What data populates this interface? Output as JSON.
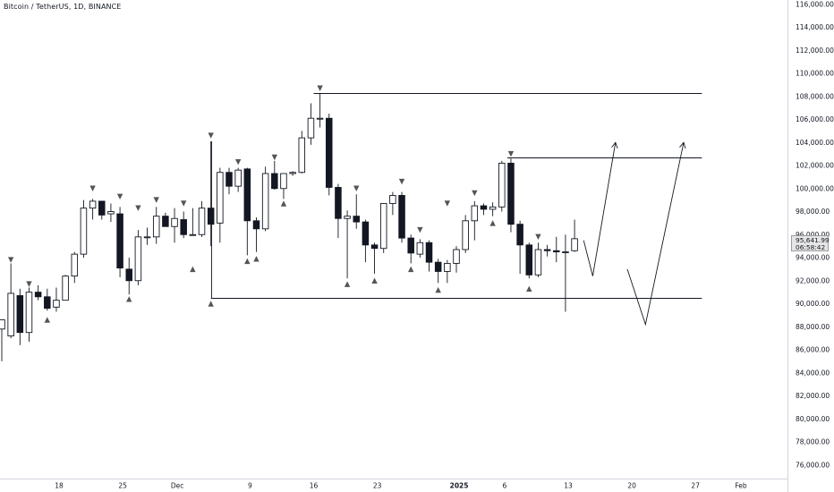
{
  "header": {
    "symbol_title": "Bitcoin / TetherUS, 1D, BINANCE"
  },
  "price_badge": {
    "price": "95,641.99",
    "countdown": "06:58:42"
  },
  "colors": {
    "up_candle_fill": "#ffffff",
    "down_candle_fill": "#131722",
    "candle_outline": "#131722",
    "drawing_lines": "#131722",
    "marker": "#555555",
    "axis_border": "#d1d4dc"
  },
  "chart_data": {
    "type": "candlestick",
    "yaxis": {
      "range": [
        74500,
        116600
      ],
      "tick_values": [
        76000,
        78000,
        80000,
        82000,
        84000,
        86000,
        88000,
        90000,
        92000,
        94000,
        96000,
        98000,
        100000,
        102000,
        104000,
        106000,
        108000,
        110000,
        112000,
        114000,
        116000
      ],
      "tick_labels": [
        "76,000.00",
        "78,000.00",
        "80,000.00",
        "82,000.00",
        "84,000.00",
        "86,000.00",
        "88,000.00",
        "90,000.00",
        "92,000.00",
        "94,000.00",
        "96,000.00",
        "98,000.00",
        "100,000.00",
        "102,000.00",
        "104,000.00",
        "106,000.00",
        "108,000.00",
        "110,000.00",
        "112,000.00",
        "114,000.00",
        "116,000.00"
      ]
    },
    "xaxis": {
      "labels": [
        {
          "text": "18",
          "bar": 6.3,
          "bold": false
        },
        {
          "text": "25",
          "bar": 13.3,
          "bold": false
        },
        {
          "text": "Dec",
          "bar": 19.3,
          "bold": false
        },
        {
          "text": "9",
          "bar": 27.3,
          "bold": false
        },
        {
          "text": "16",
          "bar": 34.3,
          "bold": false
        },
        {
          "text": "23",
          "bar": 41.3,
          "bold": false
        },
        {
          "text": "2025",
          "bar": 50.3,
          "bold": true
        },
        {
          "text": "6",
          "bar": 55.3,
          "bold": false
        },
        {
          "text": "13",
          "bar": 62.3,
          "bold": false
        },
        {
          "text": "20",
          "bar": 69.3,
          "bold": false
        },
        {
          "text": "27",
          "bar": 76.3,
          "bold": false
        },
        {
          "text": "Feb",
          "bar": 81.3,
          "bold": false
        }
      ]
    },
    "candles": [
      {
        "o": 87800,
        "h": 88600,
        "l": 85000,
        "c": 88600
      },
      {
        "o": 87200,
        "h": 93500,
        "l": 87000,
        "c": 90900
      },
      {
        "o": 90700,
        "h": 91300,
        "l": 86400,
        "c": 87500
      },
      {
        "o": 87500,
        "h": 91400,
        "l": 86700,
        "c": 91000
      },
      {
        "o": 91000,
        "h": 91600,
        "l": 90300,
        "c": 90600
      },
      {
        "o": 90600,
        "h": 91300,
        "l": 89400,
        "c": 89600
      },
      {
        "o": 89700,
        "h": 91400,
        "l": 89300,
        "c": 90300
      },
      {
        "o": 90300,
        "h": 92500,
        "l": 90300,
        "c": 92400
      },
      {
        "o": 92400,
        "h": 94500,
        "l": 91800,
        "c": 94300
      },
      {
        "o": 94300,
        "h": 99000,
        "l": 94000,
        "c": 98300
      },
      {
        "o": 98300,
        "h": 99100,
        "l": 97300,
        "c": 98900
      },
      {
        "o": 98900,
        "h": 98900,
        "l": 97300,
        "c": 97700
      },
      {
        "o": 97800,
        "h": 98700,
        "l": 97100,
        "c": 98000
      },
      {
        "o": 97800,
        "h": 98400,
        "l": 92300,
        "c": 93100
      },
      {
        "o": 93000,
        "h": 94000,
        "l": 90800,
        "c": 92000
      },
      {
        "o": 92000,
        "h": 96400,
        "l": 91600,
        "c": 95800
      },
      {
        "o": 95800,
        "h": 96600,
        "l": 95100,
        "c": 95800
      },
      {
        "o": 95800,
        "h": 98400,
        "l": 95200,
        "c": 97600
      },
      {
        "o": 97600,
        "h": 97900,
        "l": 96700,
        "c": 96700
      },
      {
        "o": 96700,
        "h": 98300,
        "l": 95300,
        "c": 97400
      },
      {
        "o": 97300,
        "h": 98000,
        "l": 95700,
        "c": 96000
      },
      {
        "o": 96000,
        "h": 98300,
        "l": 96000,
        "c": 96000
      },
      {
        "o": 96000,
        "h": 98900,
        "l": 95800,
        "c": 98300
      },
      {
        "o": 98300,
        "h": 104100,
        "l": 95000,
        "c": 96900
      },
      {
        "o": 97000,
        "h": 101800,
        "l": 95300,
        "c": 101400
      },
      {
        "o": 101400,
        "h": 101800,
        "l": 99500,
        "c": 100200
      },
      {
        "o": 100200,
        "h": 101800,
        "l": 99700,
        "c": 101600
      },
      {
        "o": 101700,
        "h": 101800,
        "l": 94200,
        "c": 97200
      },
      {
        "o": 97200,
        "h": 97500,
        "l": 94500,
        "c": 96500
      },
      {
        "o": 96500,
        "h": 101900,
        "l": 96300,
        "c": 101300
      },
      {
        "o": 101300,
        "h": 102400,
        "l": 99900,
        "c": 100000
      },
      {
        "o": 100000,
        "h": 101300,
        "l": 99100,
        "c": 101300
      },
      {
        "o": 101300,
        "h": 101500,
        "l": 101100,
        "c": 101400
      },
      {
        "o": 101400,
        "h": 105000,
        "l": 101300,
        "c": 104400
      },
      {
        "o": 104400,
        "h": 107400,
        "l": 103800,
        "c": 106100
      },
      {
        "o": 106100,
        "h": 108300,
        "l": 105300,
        "c": 106100
      },
      {
        "o": 106100,
        "h": 106500,
        "l": 99400,
        "c": 100100
      },
      {
        "o": 100100,
        "h": 100400,
        "l": 95700,
        "c": 97400
      },
      {
        "o": 97400,
        "h": 98100,
        "l": 92200,
        "c": 97600
      },
      {
        "o": 97600,
        "h": 99500,
        "l": 96500,
        "c": 97100
      },
      {
        "o": 97100,
        "h": 97300,
        "l": 93600,
        "c": 95100
      },
      {
        "o": 95100,
        "h": 95300,
        "l": 92600,
        "c": 94800
      },
      {
        "o": 94800,
        "h": 98500,
        "l": 94400,
        "c": 98700
      },
      {
        "o": 98700,
        "h": 99700,
        "l": 97700,
        "c": 99400
      },
      {
        "o": 99400,
        "h": 99700,
        "l": 95300,
        "c": 95700
      },
      {
        "o": 95700,
        "h": 96000,
        "l": 93500,
        "c": 94400
      },
      {
        "o": 94300,
        "h": 95600,
        "l": 94000,
        "c": 95300
      },
      {
        "o": 95300,
        "h": 95500,
        "l": 92800,
        "c": 93600
      },
      {
        "o": 93600,
        "h": 93900,
        "l": 91800,
        "c": 92800
      },
      {
        "o": 92800,
        "h": 93800,
        "l": 91800,
        "c": 93500
      },
      {
        "o": 93500,
        "h": 95000,
        "l": 92700,
        "c": 94700
      },
      {
        "o": 94700,
        "h": 97700,
        "l": 94400,
        "c": 97200
      },
      {
        "o": 97200,
        "h": 98900,
        "l": 95500,
        "c": 98500
      },
      {
        "o": 98500,
        "h": 98700,
        "l": 97700,
        "c": 98200
      },
      {
        "o": 98200,
        "h": 98800,
        "l": 97600,
        "c": 98400
      },
      {
        "o": 98400,
        "h": 102400,
        "l": 98000,
        "c": 102200
      },
      {
        "o": 102200,
        "h": 102600,
        "l": 96200,
        "c": 96900
      },
      {
        "o": 96900,
        "h": 97200,
        "l": 92600,
        "c": 95100
      },
      {
        "o": 95100,
        "h": 95300,
        "l": 92200,
        "c": 92500
      },
      {
        "o": 92500,
        "h": 95300,
        "l": 92300,
        "c": 94700
      },
      {
        "o": 94700,
        "h": 95100,
        "l": 94100,
        "c": 94600
      },
      {
        "o": 94600,
        "h": 95800,
        "l": 93600,
        "c": 94500
      },
      {
        "o": 94500,
        "h": 96000,
        "l": 89300,
        "c": 94500
      },
      {
        "o": 94600,
        "h": 97300,
        "l": 94500,
        "c": 95642
      }
    ],
    "markers": [
      {
        "bar": 1,
        "dir": "down",
        "price": 93800
      },
      {
        "bar": 3,
        "dir": "down",
        "price": 91700
      },
      {
        "bar": 5,
        "dir": "up",
        "price": 88600
      },
      {
        "bar": 10,
        "dir": "down",
        "price": 100000
      },
      {
        "bar": 13,
        "dir": "down",
        "price": 99300
      },
      {
        "bar": 14,
        "dir": "up",
        "price": 90400
      },
      {
        "bar": 15,
        "dir": "down",
        "price": 98300
      },
      {
        "bar": 17,
        "dir": "down",
        "price": 99000
      },
      {
        "bar": 20,
        "dir": "down",
        "price": 98700
      },
      {
        "bar": 21,
        "dir": "up",
        "price": 93000
      },
      {
        "bar": 23,
        "dir": "down",
        "price": 104600
      },
      {
        "bar": 23,
        "dir": "up",
        "price": 90000
      },
      {
        "bar": 26,
        "dir": "down",
        "price": 102300
      },
      {
        "bar": 27,
        "dir": "up",
        "price": 93700
      },
      {
        "bar": 28,
        "dir": "up",
        "price": 93900
      },
      {
        "bar": 30,
        "dir": "down",
        "price": 102700
      },
      {
        "bar": 31,
        "dir": "up",
        "price": 98700
      },
      {
        "bar": 35,
        "dir": "down",
        "price": 108700
      },
      {
        "bar": 38,
        "dir": "up",
        "price": 91700
      },
      {
        "bar": 39,
        "dir": "down",
        "price": 100000
      },
      {
        "bar": 41,
        "dir": "up",
        "price": 92000
      },
      {
        "bar": 44,
        "dir": "down",
        "price": 100600
      },
      {
        "bar": 45,
        "dir": "up",
        "price": 93000
      },
      {
        "bar": 46,
        "dir": "down",
        "price": 96400
      },
      {
        "bar": 48,
        "dir": "up",
        "price": 91200
      },
      {
        "bar": 49,
        "dir": "down",
        "price": 98700
      },
      {
        "bar": 52,
        "dir": "down",
        "price": 99600
      },
      {
        "bar": 54,
        "dir": "up",
        "price": 97000
      },
      {
        "bar": 56,
        "dir": "down",
        "price": 103000
      },
      {
        "bar": 58,
        "dir": "up",
        "price": 91300
      },
      {
        "bar": 59,
        "dir": "down",
        "price": 95800
      }
    ],
    "horizontal_lines": [
      {
        "price": 108300,
        "from_bar": 34.3,
        "to_bar": 77
      },
      {
        "price": 102700,
        "from_bar": 55.6,
        "to_bar": 77
      },
      {
        "price": 90500,
        "from_bar": 23,
        "to_bar": 77
      }
    ],
    "vertical_lines": [
      {
        "bar": 23,
        "from_price": 90500,
        "to_price": 104100
      }
    ],
    "projection_paths": [
      {
        "points": [
          [
            64.0,
            95500
          ],
          [
            65.0,
            92400
          ],
          [
            67.5,
            104000
          ]
        ],
        "arrow": true
      },
      {
        "points": [
          [
            68.8,
            93000
          ],
          [
            70.8,
            88200
          ],
          [
            75.0,
            104000
          ]
        ],
        "arrow": true
      }
    ]
  }
}
